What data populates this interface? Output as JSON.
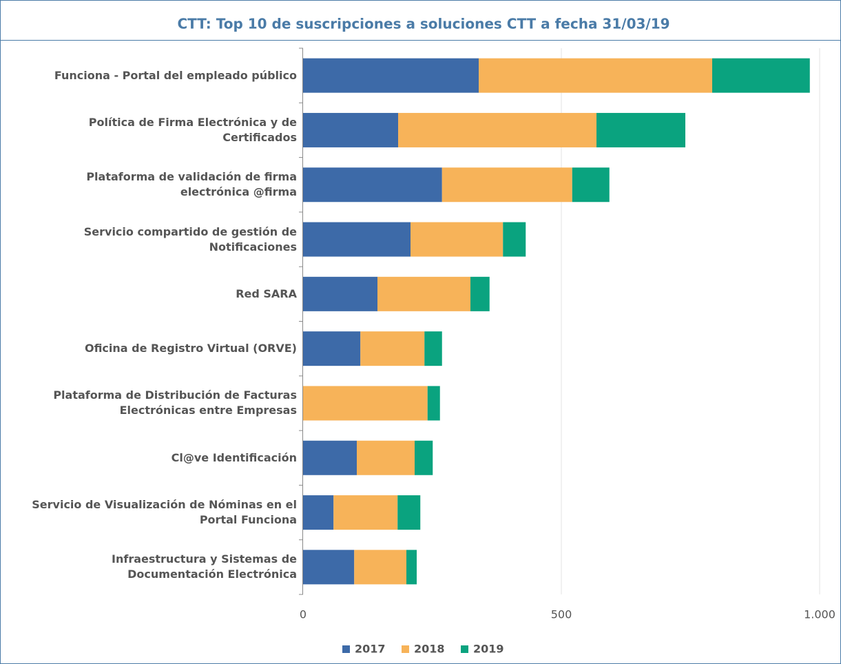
{
  "chart_data": {
    "type": "stacked_barh",
    "title": "CTT: Top 10 de suscripciones a soluciones CTT a fecha 31/03/19",
    "categories": [
      "Funciona - Portal del empleado público",
      "Política de Firma Electrónica y de\nCertificados",
      "Plataforma de validación de firma\nelectrónica @firma",
      "Servicio compartido de gestión de\nNotificaciones",
      "Red SARA",
      "Oficina de Registro Virtual (ORVE)",
      "Plataforma de Distribución de Facturas\nElectrónicas entre Empresas",
      "Cl@ve Identificación",
      "Servicio de Visualización de Nóminas en el\nPortal Funciona",
      "Infraestructura y Sistemas de\nDocumentación Electrónica"
    ],
    "series": [
      {
        "name": "2017",
        "color": "#3d6aa8",
        "values": [
          340,
          184,
          269,
          208,
          144,
          111,
          0,
          104,
          59,
          99
        ]
      },
      {
        "name": "2018",
        "color": "#f7b359",
        "values": [
          452,
          384,
          252,
          179,
          180,
          124,
          241,
          112,
          124,
          101
        ]
      },
      {
        "name": "2019",
        "color": "#0aa37f",
        "values": [
          189,
          172,
          72,
          44,
          37,
          34,
          24,
          35,
          44,
          20
        ]
      }
    ],
    "xlim": [
      0,
      1000
    ],
    "xticks": [
      0,
      500,
      {
        "value": 1000,
        "label": "1.000"
      }
    ],
    "grid": true
  }
}
